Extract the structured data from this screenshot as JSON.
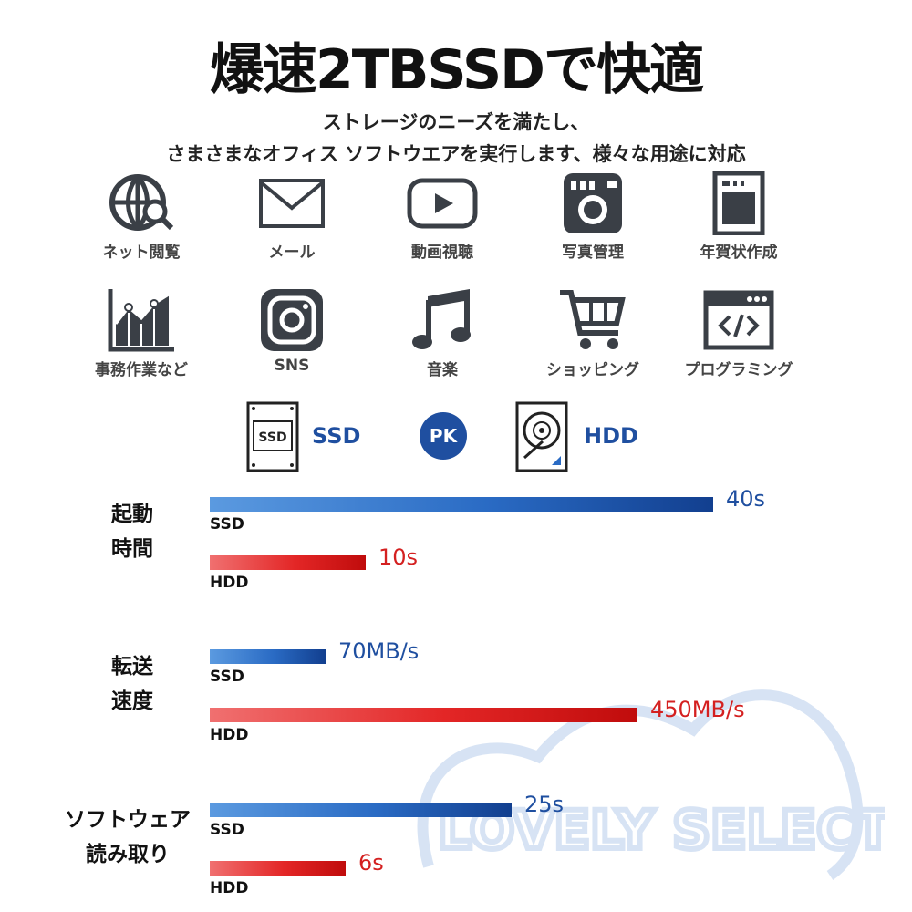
{
  "title": "爆速2TBSSDで快適",
  "subtitle_lines": [
    "ストレージのニーズを満たし、",
    "さまさまなオフィス ソフトウエアを実行します、様々な用途に対応"
  ],
  "features": [
    {
      "label": "ネット閲覧",
      "icon": "globe-search-icon"
    },
    {
      "label": "メール",
      "icon": "mail-icon"
    },
    {
      "label": "動画視聴",
      "icon": "video-play-icon"
    },
    {
      "label": "写真管理",
      "icon": "camera-icon"
    },
    {
      "label": "年賀状作成",
      "icon": "postcard-icon"
    },
    {
      "label": "事務作業など",
      "icon": "line-chart-icon"
    },
    {
      "label": "SNS",
      "icon": "instagram-icon"
    },
    {
      "label": "音楽",
      "icon": "music-note-icon"
    },
    {
      "label": "ショッピング",
      "icon": "shopping-cart-icon"
    },
    {
      "label": "プログラミング",
      "icon": "code-window-icon"
    }
  ],
  "comparison": {
    "left_label": "SSD",
    "left_icon_text": "SSD",
    "vs": "PK",
    "right_label": "HDD"
  },
  "watermark": "LOVELY SELECT",
  "colors": {
    "ssd": "#1f4fa0",
    "hdd": "#e32626"
  },
  "chart_data": {
    "type": "bar",
    "orientation": "horizontal",
    "groups": [
      {
        "label": "起動\n時間",
        "bars": [
          {
            "series": "SSD",
            "value": 40,
            "text": "40s"
          },
          {
            "series": "HDD",
            "value": 10,
            "text": "10s"
          }
        ]
      },
      {
        "label": "転送\n速度",
        "bars": [
          {
            "series": "SSD",
            "value": 70,
            "text": "70MB/s"
          },
          {
            "series": "HDD",
            "value": 450,
            "text": "450MB/s"
          }
        ]
      },
      {
        "label": "ソフトウェア\n読み取り",
        "bars": [
          {
            "series": "SSD",
            "value": 25,
            "text": "25s"
          },
          {
            "series": "HDD",
            "value": 6,
            "text": "6s"
          }
        ]
      }
    ],
    "series": [
      "SSD",
      "HDD"
    ],
    "bar_fraction": [
      [
        1.0,
        0.31
      ],
      [
        0.23,
        0.85
      ],
      [
        0.6,
        0.27
      ]
    ]
  }
}
